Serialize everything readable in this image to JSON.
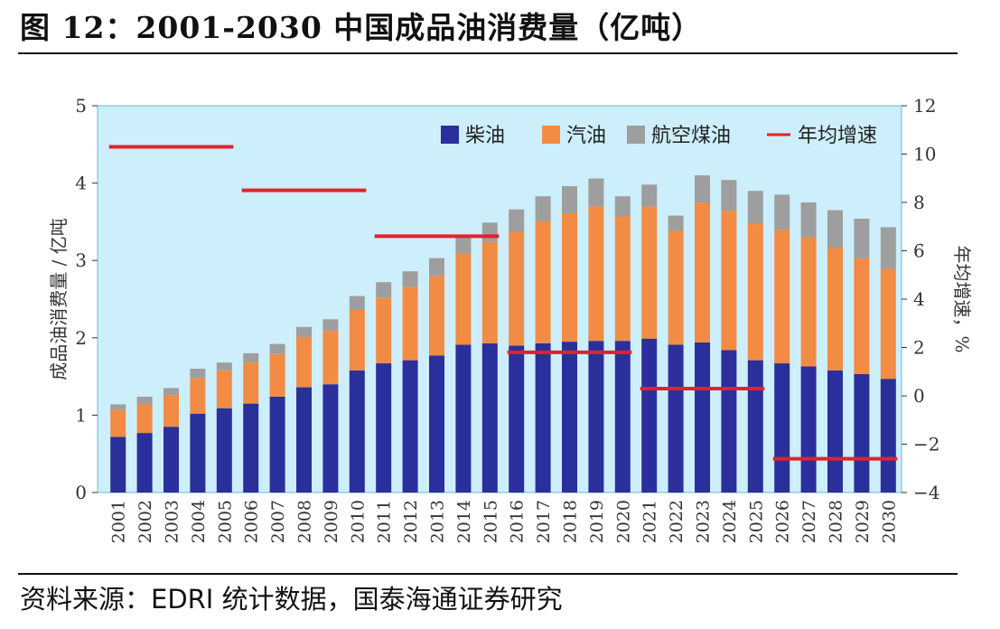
{
  "figure_title": "图 12：2001-2030 中国成品油消费量（亿吨）",
  "source_note": "资料来源：EDRI 统计数据，国泰海通证券研究",
  "colors": {
    "diesel": "#2b2f9b",
    "gasoline": "#f28c44",
    "jet": "#9e9e9e",
    "growth": "#e2222b",
    "plot_bg": "#cdeefb"
  },
  "chart_data": {
    "type": "bar",
    "stacked": true,
    "categories": [
      "2001",
      "2002",
      "2003",
      "2004",
      "2005",
      "2006",
      "2007",
      "2008",
      "2009",
      "2010",
      "2011",
      "2012",
      "2013",
      "2014",
      "2015",
      "2016",
      "2017",
      "2018",
      "2019",
      "2020",
      "2021",
      "2022",
      "2023",
      "2024",
      "2025",
      "2026",
      "2027",
      "2028",
      "2029",
      "2030"
    ],
    "ylabel": "成品油消费量 / 亿吨",
    "y2label": "年均增速，%",
    "ylim": [
      0,
      5
    ],
    "yticks": [
      "0",
      "1",
      "2",
      "3",
      "4",
      "5"
    ],
    "y2lim": [
      -4,
      12
    ],
    "y2ticks": [
      "−4",
      "−2",
      "0",
      "2",
      "4",
      "6",
      "8",
      "10",
      "12"
    ],
    "legend_position": "top-right",
    "series": [
      {
        "name": "柴油",
        "color": "#2b2f9b",
        "values": [
          0.72,
          0.77,
          0.85,
          1.02,
          1.09,
          1.15,
          1.24,
          1.36,
          1.4,
          1.58,
          1.67,
          1.71,
          1.77,
          1.91,
          1.93,
          1.9,
          1.93,
          1.95,
          1.96,
          1.96,
          1.99,
          1.91,
          1.94,
          1.84,
          1.71,
          1.67,
          1.63,
          1.58,
          1.53,
          1.47
        ]
      },
      {
        "name": "汽油",
        "color": "#f28c44",
        "values": [
          0.35,
          0.37,
          0.41,
          0.46,
          0.49,
          0.53,
          0.55,
          0.65,
          0.69,
          0.78,
          0.85,
          0.95,
          1.03,
          1.18,
          1.31,
          1.47,
          1.58,
          1.66,
          1.74,
          1.61,
          1.71,
          1.48,
          1.81,
          1.8,
          1.77,
          1.73,
          1.67,
          1.58,
          1.5,
          1.42
        ]
      },
      {
        "name": "航空煤油",
        "color": "#9e9e9e",
        "values": [
          0.07,
          0.1,
          0.09,
          0.12,
          0.1,
          0.12,
          0.13,
          0.13,
          0.15,
          0.18,
          0.2,
          0.2,
          0.23,
          0.23,
          0.25,
          0.29,
          0.32,
          0.35,
          0.36,
          0.26,
          0.28,
          0.19,
          0.35,
          0.4,
          0.42,
          0.45,
          0.45,
          0.49,
          0.51,
          0.54
        ]
      }
    ],
    "growth_series": {
      "name": "年均增速",
      "color": "#e2222b",
      "segments": [
        {
          "start": "2001",
          "end": "2005",
          "value": 10.3
        },
        {
          "start": "2006",
          "end": "2010",
          "value": 8.5
        },
        {
          "start": "2011",
          "end": "2015",
          "value": 6.6
        },
        {
          "start": "2016",
          "end": "2020",
          "value": 1.8
        },
        {
          "start": "2021",
          "end": "2025",
          "value": 0.3
        },
        {
          "start": "2026",
          "end": "2030",
          "value": -2.6
        }
      ]
    },
    "legend": [
      "柴油",
      "汽油",
      "航空煤油",
      "年均增速"
    ]
  }
}
